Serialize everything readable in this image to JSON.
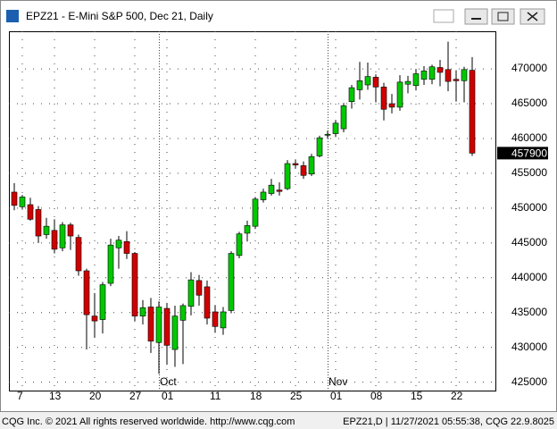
{
  "window": {
    "title": "EPZ21 - E-Mini S&P 500, Dec 21, Daily"
  },
  "chart_data": {
    "type": "candlestick",
    "categories": [
      null,
      "7",
      null,
      null,
      null,
      "13",
      null,
      null,
      null,
      null,
      "20",
      null,
      null,
      null,
      null,
      "27",
      null,
      null,
      null,
      "01",
      null,
      null,
      null,
      null,
      null,
      "11",
      null,
      null,
      null,
      null,
      "18",
      null,
      null,
      null,
      null,
      "25",
      null,
      null,
      null,
      null,
      "01",
      null,
      null,
      null,
      null,
      "08",
      null,
      null,
      null,
      null,
      "15",
      null,
      null,
      null,
      null,
      "22",
      null,
      null
    ],
    "month_labels": [
      null,
      null,
      null,
      null,
      null,
      null,
      null,
      null,
      null,
      null,
      null,
      null,
      null,
      null,
      null,
      null,
      null,
      null,
      null,
      "Oct",
      null,
      null,
      null,
      null,
      null,
      null,
      null,
      null,
      null,
      null,
      null,
      null,
      null,
      null,
      null,
      null,
      null,
      null,
      null,
      null,
      "Nov",
      null,
      null,
      null,
      null,
      null,
      null,
      null,
      null,
      null,
      null,
      null,
      null,
      null,
      null,
      null,
      null,
      null
    ],
    "open": [
      452300,
      450200,
      450500,
      449800,
      446200,
      446800,
      444300,
      447600,
      445800,
      441000,
      434500,
      434000,
      439200,
      444300,
      445200,
      443500,
      434500,
      435800,
      430700,
      435600,
      429700,
      433900,
      435900,
      439600,
      438700,
      435100,
      432800,
      435300,
      443200,
      446400,
      447400,
      451200,
      452100,
      452600,
      452800,
      456400,
      456100,
      454900,
      457500,
      460500,
      460700,
      461400,
      465300,
      467000,
      467700,
      468800,
      467400,
      465000,
      464500,
      467800,
      467600,
      468500,
      468500,
      470200,
      469900,
      468500,
      468300,
      469800
    ],
    "high": [
      453600,
      451900,
      451500,
      450300,
      448600,
      448400,
      448000,
      447900,
      446200,
      441300,
      437800,
      439400,
      445600,
      446000,
      446700,
      443700,
      436800,
      437100,
      436600,
      436400,
      436000,
      436300,
      440800,
      440400,
      439600,
      436000,
      435800,
      443800,
      446600,
      448200,
      451600,
      452800,
      454200,
      453700,
      456900,
      457000,
      456700,
      457800,
      460400,
      461100,
      462600,
      465100,
      467700,
      471000,
      470900,
      469200,
      468000,
      466400,
      469100,
      469000,
      470000,
      470400,
      470600,
      471300,
      473900,
      469800,
      470300,
      471700
    ],
    "low": [
      449700,
      449800,
      448200,
      445000,
      445600,
      443500,
      443800,
      444000,
      440300,
      429700,
      431400,
      432000,
      438800,
      441300,
      442700,
      433800,
      433300,
      429200,
      426200,
      427500,
      427200,
      427600,
      434600,
      436000,
      433300,
      432100,
      431800,
      434900,
      442800,
      445200,
      447000,
      450800,
      451800,
      451800,
      452600,
      455700,
      454200,
      454600,
      457300,
      460000,
      460200,
      460900,
      464300,
      465600,
      467000,
      465200,
      462600,
      463600,
      464000,
      466500,
      466900,
      467700,
      467800,
      467500,
      466800,
      465300,
      465200,
      457500
    ],
    "close": [
      450400,
      451600,
      448400,
      446000,
      447400,
      444100,
      447600,
      446000,
      441000,
      434700,
      433800,
      439000,
      444700,
      445400,
      443500,
      434500,
      435700,
      430900,
      435800,
      430300,
      434500,
      436000,
      439700,
      437500,
      434200,
      433000,
      435100,
      443500,
      446300,
      447500,
      451300,
      452300,
      453300,
      452400,
      456400,
      456200,
      454700,
      457400,
      460100,
      460600,
      462200,
      464700,
      467300,
      468300,
      468900,
      467400,
      464200,
      464500,
      468100,
      468200,
      469300,
      469700,
      470300,
      469500,
      468200,
      468300,
      469900,
      457900
    ],
    "up_color": "#00c800",
    "down_color": "#d00000",
    "ylim": [
      423800,
      475400
    ],
    "yticks": [
      425000,
      430000,
      435000,
      440000,
      445000,
      450000,
      455000,
      460000,
      465000,
      470000
    ],
    "grid": true
  },
  "footer": {
    "left": "CQG Inc. © 2021 All rights reserved worldwide. http://www.cqg.com",
    "right": "EPZ21,D | 11/27/2021 05:55:38, CQG 22.9.8025"
  }
}
